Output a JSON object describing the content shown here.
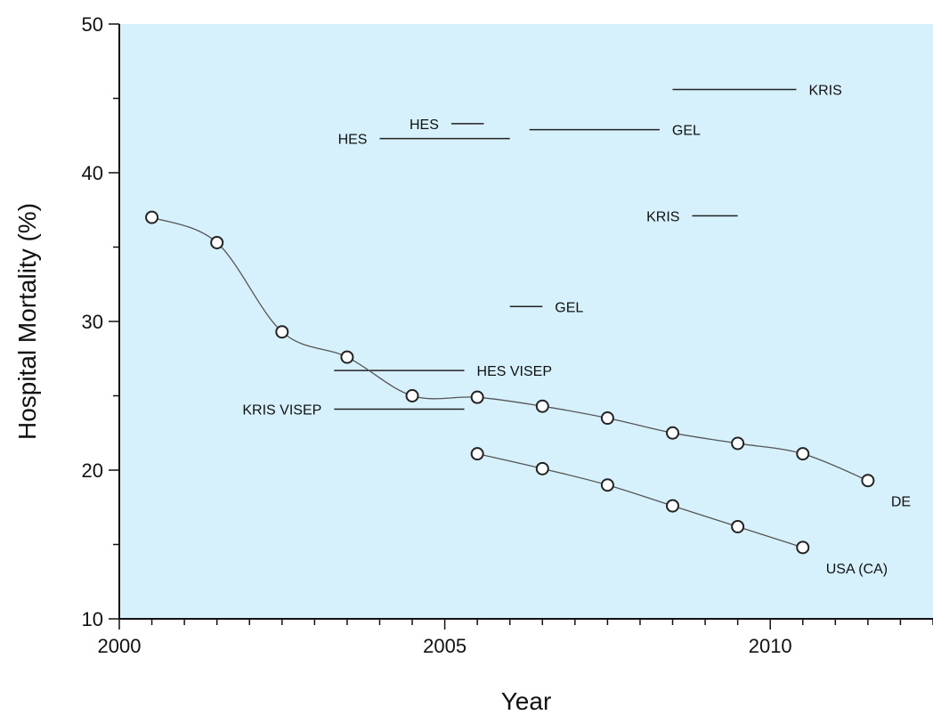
{
  "chart_data": {
    "type": "line",
    "title": "",
    "xlabel": "Year",
    "ylabel": "Hospital Mortality (%)",
    "xlim": [
      2000,
      2012.5
    ],
    "ylim": [
      10,
      50
    ],
    "x_ticks": [
      2000,
      2005,
      2010
    ],
    "x_tick_labels": [
      "2000",
      "2005",
      "2010"
    ],
    "y_ticks": [
      10,
      20,
      30,
      40,
      50
    ],
    "y_tick_labels": [
      "10",
      "20",
      "30",
      "40",
      "50"
    ],
    "x_minor_step": 0.5,
    "y_minor_step": 5,
    "grid": false,
    "background": "#d6f1fb",
    "series": [
      {
        "name": "DE",
        "x": [
          2000.5,
          2001.5,
          2002.5,
          2003.5,
          2004.5,
          2005.5,
          2006.5,
          2007.5,
          2008.5,
          2009.5,
          2010.5,
          2011.5
        ],
        "y": [
          37.0,
          35.3,
          29.3,
          27.6,
          25.0,
          24.9,
          24.3,
          23.5,
          22.5,
          21.8,
          21.1,
          19.3
        ]
      },
      {
        "name": "USA (CA)",
        "x": [
          2005.5,
          2006.5,
          2007.5,
          2008.5,
          2009.5,
          2010.5
        ],
        "y": [
          21.1,
          20.1,
          19.0,
          17.6,
          16.2,
          14.8
        ]
      }
    ],
    "study_ranges": [
      {
        "label": "KRIS",
        "x_start": 2008.5,
        "x_end": 2010.4,
        "y": 45.6,
        "label_side": "right"
      },
      {
        "label": "HES",
        "x_start": 2005.1,
        "x_end": 2005.6,
        "y": 43.3,
        "label_side": "left"
      },
      {
        "label": "HES",
        "x_start": 2004.0,
        "x_end": 2006.0,
        "y": 42.3,
        "label_side": "left"
      },
      {
        "label": "GEL",
        "x_start": 2006.3,
        "x_end": 2008.3,
        "y": 42.9,
        "label_side": "right"
      },
      {
        "label": "KRIS",
        "x_start": 2008.8,
        "x_end": 2009.5,
        "y": 37.1,
        "label_side": "left"
      },
      {
        "label": "GEL",
        "x_start": 2006.0,
        "x_end": 2006.5,
        "y": 31.0,
        "label_side": "right"
      },
      {
        "label": "HES VISEP",
        "x_start": 2003.3,
        "x_end": 2005.3,
        "y": 26.7,
        "label_side": "right"
      },
      {
        "label": "KRIS VISEP",
        "x_start": 2003.3,
        "x_end": 2005.3,
        "y": 24.1,
        "label_side": "left"
      }
    ]
  }
}
